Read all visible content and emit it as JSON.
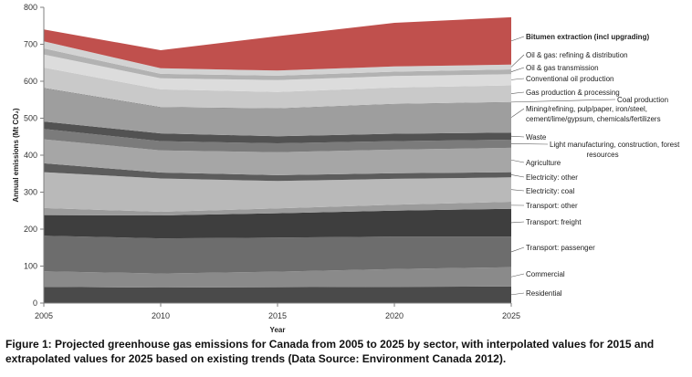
{
  "caption": "Figure 1: Projected greenhouse gas emissions for Canada from 2005 to 2025 by sector, with interpolated values for 2015 and extrapolated values for 2025 based on existing trends (Data Source: Environment Canada 2012).",
  "chart_data": {
    "type": "area",
    "stacked": true,
    "x": [
      2005,
      2010,
      2015,
      2020,
      2025
    ],
    "xlabel": "Year",
    "ylabel": "Annual emissions (Mt CO₂)",
    "ylim": [
      0,
      800
    ],
    "yticks": [
      0,
      100,
      200,
      300,
      400,
      500,
      600,
      700,
      800
    ],
    "xticks": [
      2005,
      2010,
      2015,
      2020,
      2025
    ],
    "grid": false,
    "legend": "right (labels with leader lines)",
    "series": [
      {
        "name": "Residential",
        "values": [
          44,
          42,
          43,
          44,
          45
        ],
        "color": "#4a4a4a"
      },
      {
        "name": "Commercial",
        "values": [
          42,
          38,
          42,
          48,
          52
        ],
        "color": "#8a8a8a"
      },
      {
        "name": "Transport: passenger",
        "values": [
          96,
          95,
          92,
          88,
          83
        ],
        "color": "#6d6d6d"
      },
      {
        "name": "Transport: freight",
        "values": [
          56,
          62,
          66,
          70,
          75
        ],
        "color": "#3e3e3e"
      },
      {
        "name": "Transport: other",
        "values": [
          19,
          10,
          13,
          16,
          19
        ],
        "color": "#9b9b9b"
      },
      {
        "name": "Electricity: coal",
        "values": [
          97,
          90,
          74,
          70,
          66
        ],
        "color": "#b9b9b9"
      },
      {
        "name": "Electricity: other",
        "values": [
          24,
          16,
          16,
          15,
          14
        ],
        "color": "#5c5c5c"
      },
      {
        "name": "Agriculture",
        "values": [
          65,
          60,
          62,
          64,
          66
        ],
        "color": "#a6a6a6"
      },
      {
        "name": "Light manufacturing, construction, forest resources",
        "values": [
          28,
          25,
          24,
          23,
          22
        ],
        "color": "#7b7b7b"
      },
      {
        "name": "Waste",
        "values": [
          20,
          21,
          19,
          20,
          19
        ],
        "color": "#525252"
      },
      {
        "name": "Mining/refining, pulp/paper, iron/steel, cement/lime/gypsum, chemicals/fertilizers",
        "values": [
          90,
          70,
          75,
          80,
          82
        ],
        "color": "#9e9e9e"
      },
      {
        "name": "Coal production",
        "values": [
          1,
          1,
          1,
          1,
          1
        ],
        "color": "#777777"
      },
      {
        "name": "Gas production & processing",
        "values": [
          55,
          48,
          44,
          44,
          45
        ],
        "color": "#c9c9c9"
      },
      {
        "name": "Conventional oil production",
        "values": [
          35,
          30,
          32,
          31,
          30
        ],
        "color": "#dcdcdc"
      },
      {
        "name": "Oil & gas transmission",
        "values": [
          17,
          12,
          12,
          12,
          13
        ],
        "color": "#b2b2b2"
      },
      {
        "name": "Oil & gas: refining & distribution",
        "values": [
          19,
          15,
          14,
          14,
          13
        ],
        "color": "#d3d3d3"
      },
      {
        "name": "Bitumen extraction (incl upgrading)",
        "values": [
          32,
          49,
          93,
          118,
          128
        ],
        "color": "#c0504d"
      }
    ]
  }
}
